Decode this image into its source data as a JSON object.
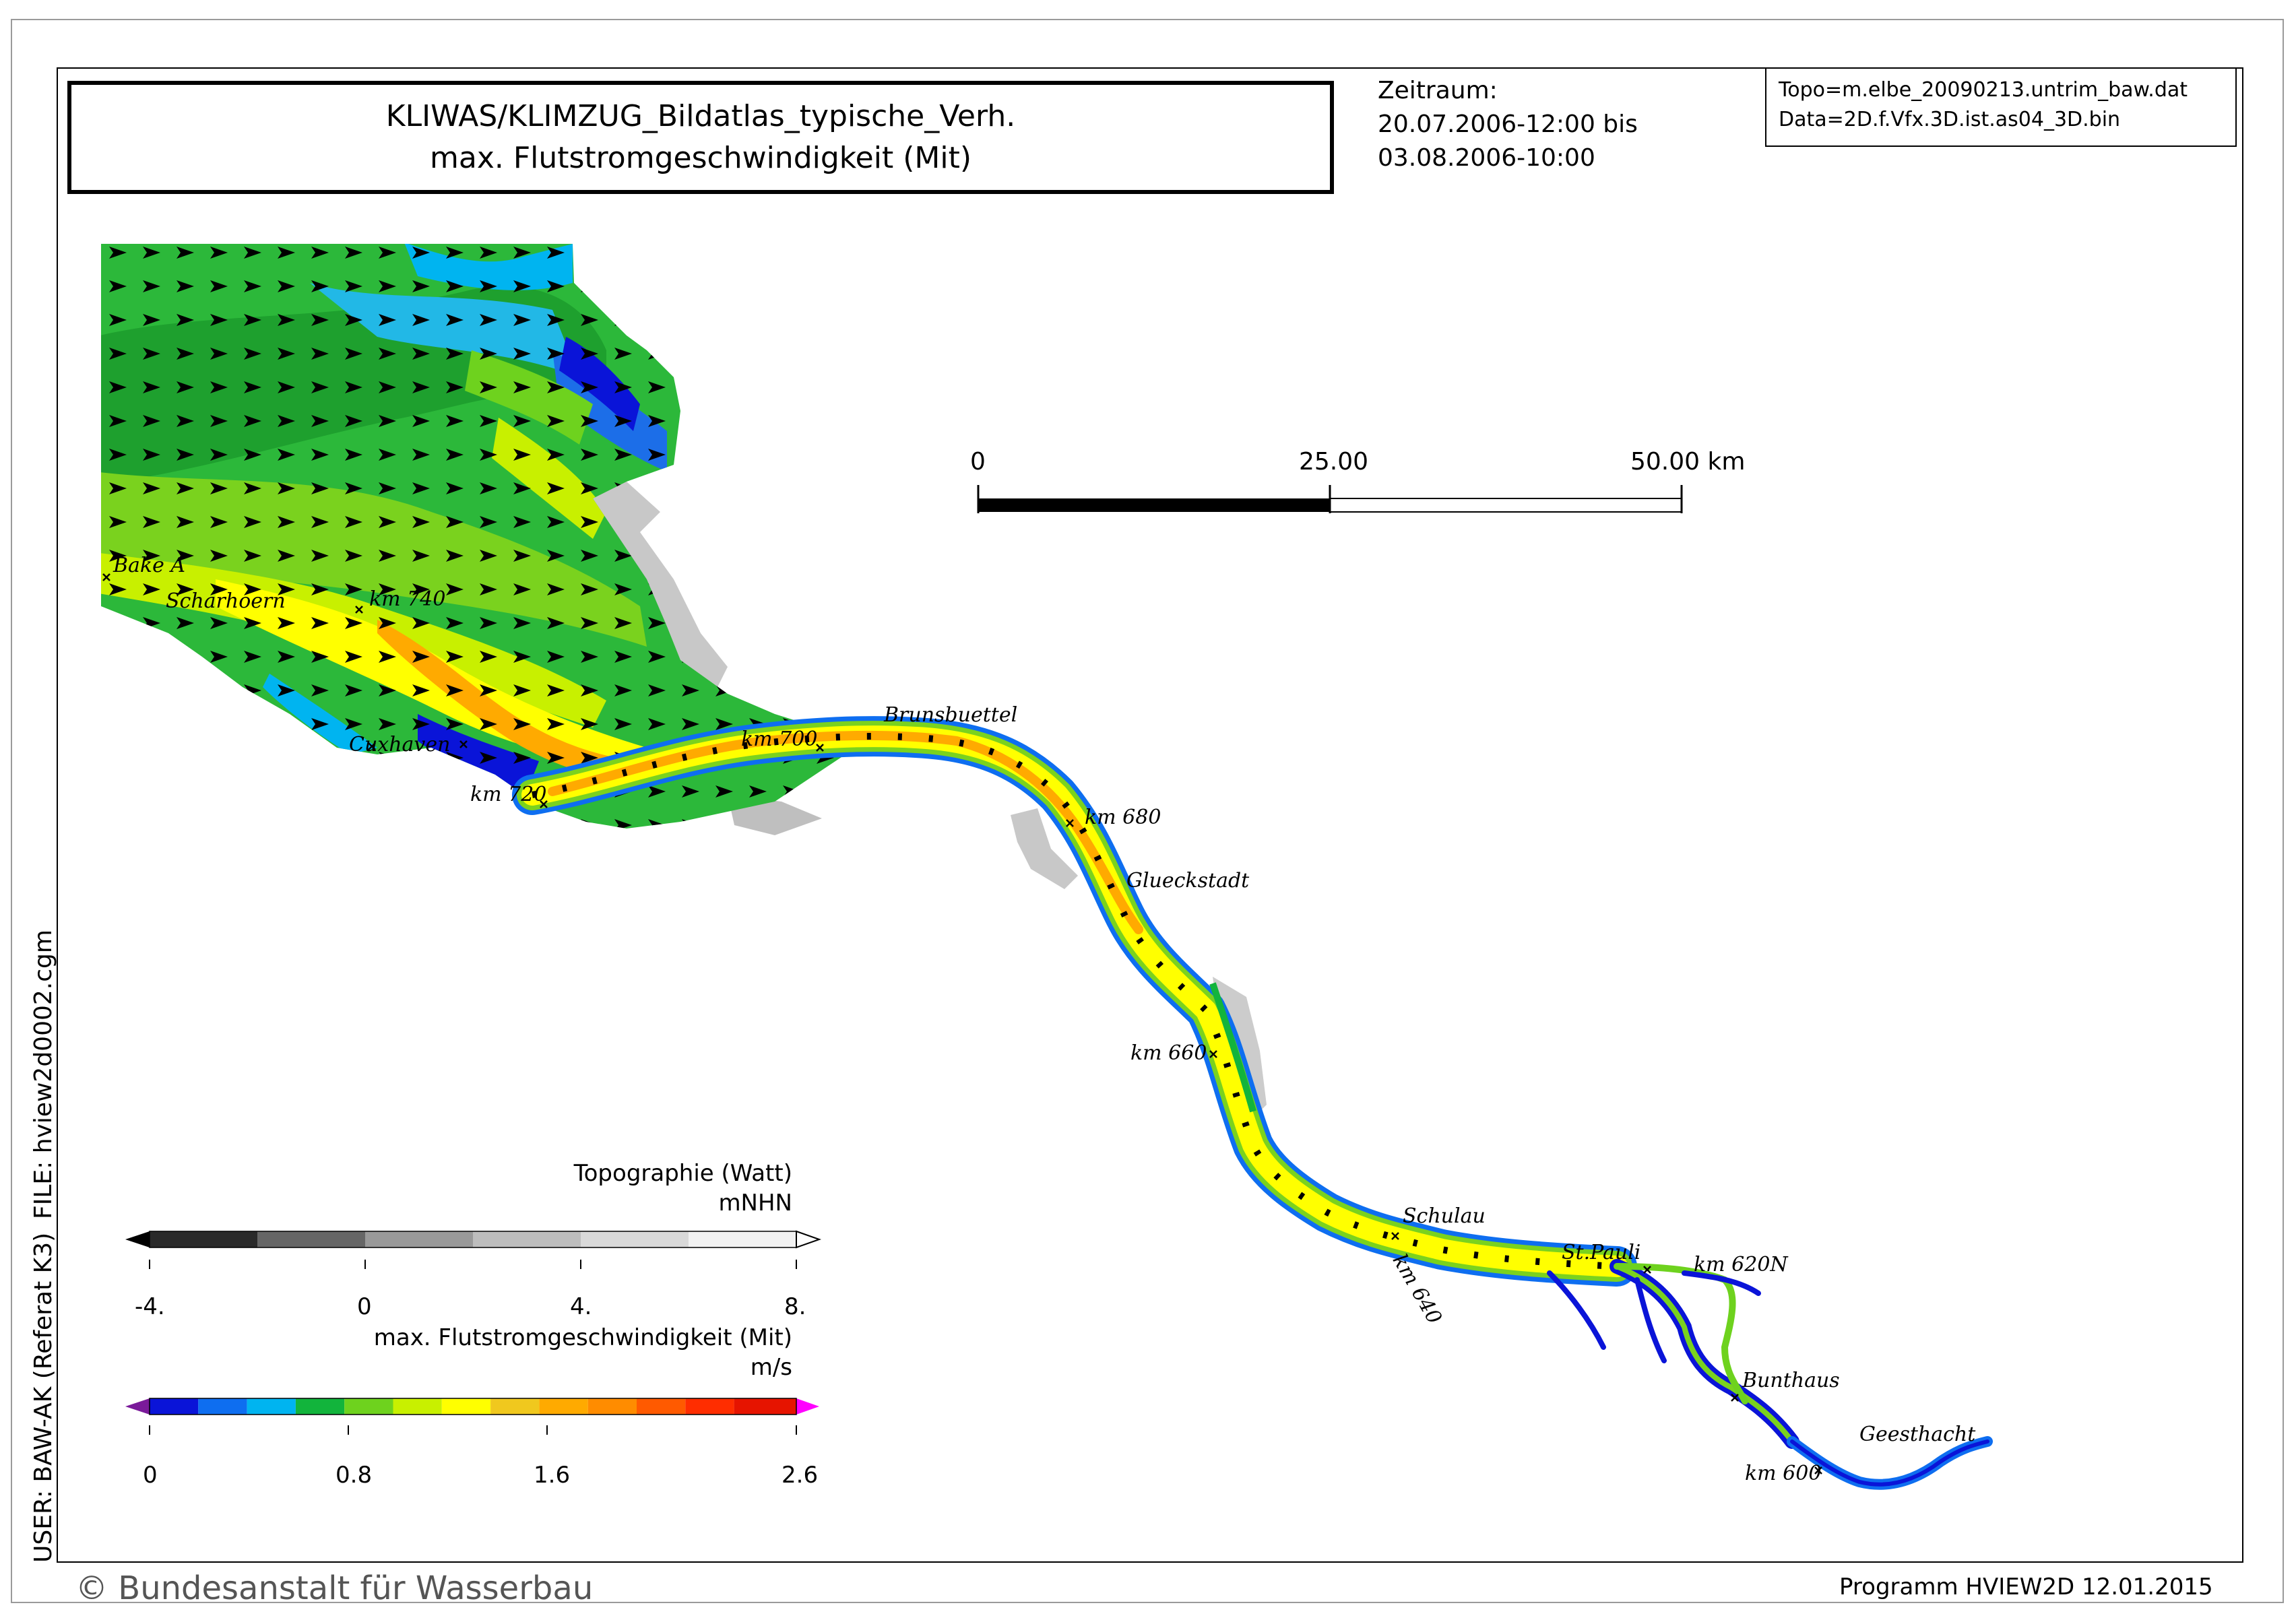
{
  "title": {
    "line1": "KLIWAS/KLIMZUG_Bildatlas_typische_Verh.",
    "line2": "max. Flutstromgeschwindigkeit (Mit)"
  },
  "period": {
    "label": "Zeitraum:",
    "start": "20.07.2006-12:00 bis",
    "end": "03.08.2006-10:00"
  },
  "source": {
    "topo": "Topo=m.elbe_20090213.untrim_baw.dat",
    "data": "Data=2D.f.Vfx.3D.ist.as04_3D.bin"
  },
  "scale_bar": {
    "labels": [
      "0",
      "25.00",
      "50.00 km"
    ],
    "units": "km"
  },
  "places": [
    "Bake A",
    "Scharhoern",
    "km 740",
    "Cuxhaven",
    "km 720",
    "km 700",
    "Brunsbuettel",
    "km 680",
    "Glueckstadt",
    "km 660",
    "Schulau",
    "km 640",
    "St.Pauli",
    "km 620N",
    "Bunthaus",
    "Geesthacht",
    "km 600"
  ],
  "legend_topo": {
    "title": "Topographie (Watt)",
    "unit": "mNHN",
    "ticks": [
      "-4.",
      "0",
      "4.",
      "8."
    ],
    "colors": [
      "#000000",
      "#2a2a2a",
      "#666666",
      "#999999",
      "#bdbdbd",
      "#d9d9d9",
      "#f2f2f2",
      "#ffffff"
    ]
  },
  "legend_speed": {
    "title": "max. Flutstromgeschwindigkeit (Mit)",
    "unit": "m/s",
    "ticks": [
      "0",
      "0.8",
      "1.6",
      "2.6"
    ],
    "colors": [
      "#7a1a9a",
      "#0a14d8",
      "#0e6ef0",
      "#00b4f0",
      "#12b43c",
      "#6ed21e",
      "#c8f000",
      "#ffff00",
      "#f0c81e",
      "#ffaa00",
      "#ff8c00",
      "#ff5a00",
      "#ff2d00",
      "#e61400",
      "#ff00ff"
    ]
  },
  "side_labels": {
    "file": "FILE: hview2d0002.cgm",
    "user": "USER: BAW-AK (Referat K3)"
  },
  "footer": {
    "copyright": "© Bundesanstalt für Wasserbau",
    "program": "Programm HVIEW2D    12.01.2015"
  }
}
